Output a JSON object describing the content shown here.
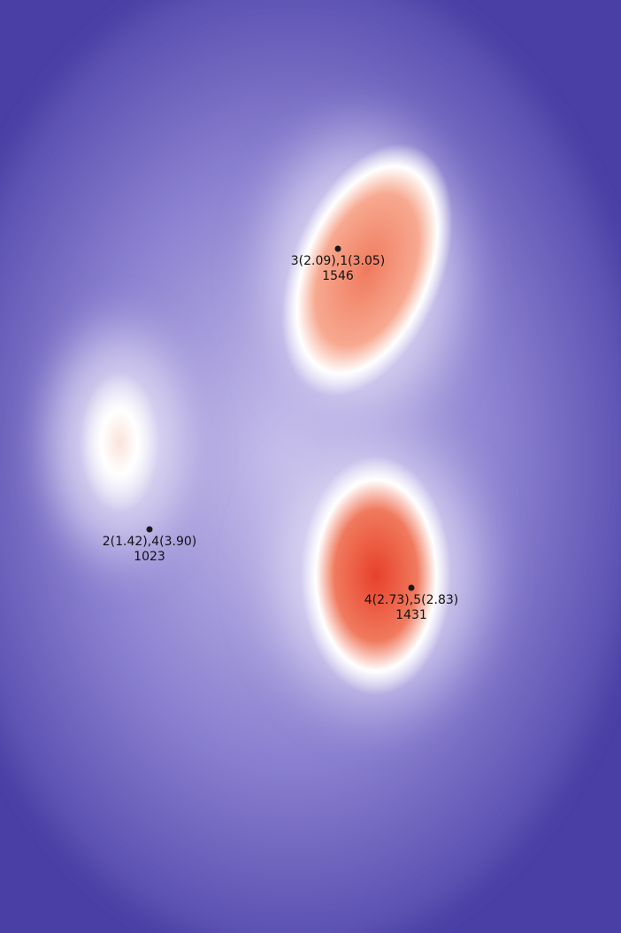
{
  "chart_data": {
    "type": "heatmap",
    "title": "",
    "xlabel": "",
    "ylabel": "",
    "grid": false,
    "legend": "none",
    "colors": {
      "low": "#4a3fa5",
      "mid": "#ffffff",
      "high": "#e8402a"
    },
    "peaks": [
      {
        "name": "peak-1",
        "label": "3(2.09),1(3.05)",
        "value": "1546",
        "intensity": 1546
      },
      {
        "name": "peak-2",
        "label": "2(1.42),4(3.90)",
        "value": "1023",
        "intensity": 1023
      },
      {
        "name": "peak-3",
        "label": "4(2.73),5(2.83)",
        "value": "1431",
        "intensity": 1431
      }
    ]
  }
}
